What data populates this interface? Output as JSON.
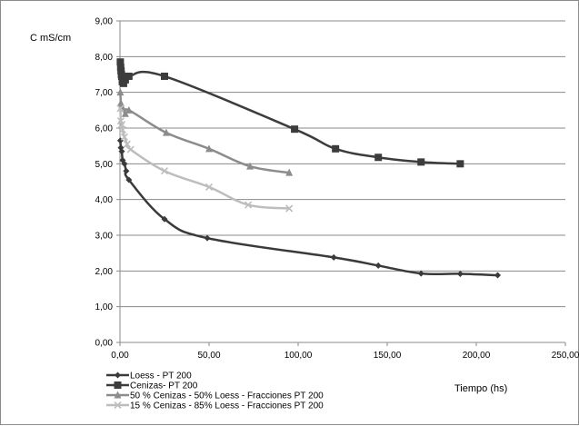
{
  "chart_data": {
    "type": "scatter",
    "title": "",
    "xlabel": "Tiempo (hs)",
    "ylabel": "C mS/cm",
    "xlim": [
      0,
      250
    ],
    "ylim": [
      0,
      9
    ],
    "x_ticks": [
      "0,00",
      "50,00",
      "100,00",
      "150,00",
      "200,00",
      "250,00"
    ],
    "y_ticks": [
      "0,00",
      "1,00",
      "2,00",
      "3,00",
      "4,00",
      "5,00",
      "6,00",
      "7,00",
      "8,00",
      "9,00"
    ],
    "grid": "horizontal",
    "legend_position": "bottom-left",
    "series": [
      {
        "name": "Loess - PT 200",
        "color": "#3a3a3a",
        "marker": "diamond",
        "points": [
          [
            0.2,
            5.65
          ],
          [
            0.5,
            5.45
          ],
          [
            1,
            5.35
          ],
          [
            1.5,
            5.1
          ],
          [
            2.5,
            5.0
          ],
          [
            3.5,
            4.8
          ],
          [
            5,
            4.55
          ],
          [
            25,
            3.45
          ],
          [
            49,
            2.92
          ],
          [
            120,
            2.38
          ],
          [
            145,
            2.15
          ],
          [
            169,
            1.93
          ],
          [
            191,
            1.92
          ],
          [
            212,
            1.88
          ]
        ]
      },
      {
        "name": "Cenizas- PT 200",
        "color": "#3c3c3c",
        "marker": "square",
        "points": [
          [
            0.2,
            7.85
          ],
          [
            0.4,
            7.7
          ],
          [
            0.6,
            7.6
          ],
          [
            0.8,
            7.5
          ],
          [
            1,
            7.45
          ],
          [
            1.3,
            7.3
          ],
          [
            2,
            7.25
          ],
          [
            3,
            7.35
          ],
          [
            5,
            7.45
          ],
          [
            25,
            7.45
          ],
          [
            98,
            5.97
          ],
          [
            121,
            5.42
          ],
          [
            145,
            5.18
          ],
          [
            169,
            5.05
          ],
          [
            191,
            5.0
          ]
        ]
      },
      {
        "name": "50 % Cenizas - 50% Loess  - Fracciones PT 200",
        "color": "#8c8c8c",
        "marker": "triangle",
        "points": [
          [
            0.2,
            7.0
          ],
          [
            0.5,
            6.7
          ],
          [
            1,
            6.6
          ],
          [
            1.5,
            6.55
          ],
          [
            3,
            6.4
          ],
          [
            5,
            6.5
          ],
          [
            26,
            5.87
          ],
          [
            50,
            5.42
          ],
          [
            73,
            4.93
          ],
          [
            95,
            4.75
          ]
        ]
      },
      {
        "name": "15 % Cenizas - 85% Loess  - Fracciones PT 200",
        "color": "#bdbdbd",
        "marker": "x",
        "points": [
          [
            0.2,
            6.55
          ],
          [
            0.5,
            6.2
          ],
          [
            1,
            6.1
          ],
          [
            1.5,
            5.95
          ],
          [
            2.5,
            5.75
          ],
          [
            4,
            5.55
          ],
          [
            6,
            5.4
          ],
          [
            25,
            4.8
          ],
          [
            50,
            4.35
          ],
          [
            72,
            3.85
          ],
          [
            95,
            3.75
          ]
        ]
      }
    ]
  }
}
